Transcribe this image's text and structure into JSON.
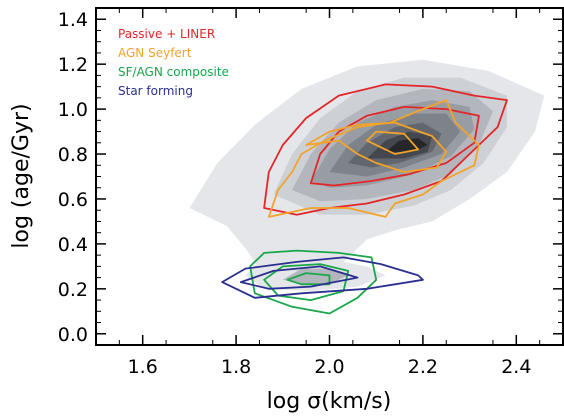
{
  "chart_data": {
    "type": "contour",
    "xlabel": "log σ(km/s)",
    "ylabel": "log (age/Gyr)",
    "xlim": [
      1.5,
      2.5
    ],
    "ylim": [
      -0.05,
      1.45
    ],
    "xticks": [
      {
        "value": 1.6,
        "label": "1.6"
      },
      {
        "value": 1.8,
        "label": "1.8"
      },
      {
        "value": 2.0,
        "label": "2.0"
      },
      {
        "value": 2.2,
        "label": "2.2"
      },
      {
        "value": 2.4,
        "label": "2.4"
      }
    ],
    "yticks": [
      {
        "value": 0.0,
        "label": "0.0"
      },
      {
        "value": 0.2,
        "label": "0.2"
      },
      {
        "value": 0.4,
        "label": "0.4"
      },
      {
        "value": 0.6,
        "label": "0.6"
      },
      {
        "value": 0.8,
        "label": "0.8"
      },
      {
        "value": 1.0,
        "label": "1.0"
      },
      {
        "value": 1.2,
        "label": "1.2"
      },
      {
        "value": 1.4,
        "label": "1.4"
      }
    ],
    "legend": {
      "placement": "top-left",
      "entries": [
        {
          "label": "Passive + LINER",
          "color": "#e2262a"
        },
        {
          "label": "AGN Seyfert",
          "color": "#f2a32a"
        },
        {
          "label": "SF/AGN composite",
          "color": "#1aa64a"
        },
        {
          "label": "Star forming",
          "color": "#2b2f8f"
        }
      ]
    },
    "filled_contours": [
      {
        "color": "#e4e6ea",
        "points": [
          [
            1.7,
            0.56
          ],
          [
            1.76,
            0.76
          ],
          [
            1.84,
            0.93
          ],
          [
            1.94,
            1.09
          ],
          [
            2.06,
            1.19
          ],
          [
            2.2,
            1.22
          ],
          [
            2.34,
            1.17
          ],
          [
            2.46,
            1.06
          ],
          [
            2.44,
            0.9
          ],
          [
            2.38,
            0.72
          ],
          [
            2.3,
            0.6
          ],
          [
            2.22,
            0.5
          ],
          [
            2.14,
            0.46
          ],
          [
            2.08,
            0.42
          ],
          [
            2.04,
            0.34
          ],
          [
            2.0,
            0.26
          ],
          [
            1.92,
            0.24
          ],
          [
            1.86,
            0.26
          ],
          [
            1.82,
            0.38
          ],
          [
            1.78,
            0.48
          ]
        ]
      },
      {
        "color": "#cdd0d5",
        "points": [
          [
            1.88,
            0.62
          ],
          [
            1.92,
            0.8
          ],
          [
            1.98,
            0.96
          ],
          [
            2.06,
            1.08
          ],
          [
            2.16,
            1.14
          ],
          [
            2.28,
            1.14
          ],
          [
            2.38,
            1.06
          ],
          [
            2.38,
            0.92
          ],
          [
            2.33,
            0.76
          ],
          [
            2.26,
            0.64
          ],
          [
            2.18,
            0.57
          ],
          [
            2.08,
            0.53
          ],
          [
            1.98,
            0.53
          ]
        ]
      },
      {
        "color": "#b3b7bd",
        "points": [
          [
            1.92,
            0.64
          ],
          [
            1.96,
            0.8
          ],
          [
            2.02,
            0.94
          ],
          [
            2.1,
            1.04
          ],
          [
            2.2,
            1.09
          ],
          [
            2.3,
            1.08
          ],
          [
            2.35,
            0.99
          ],
          [
            2.32,
            0.84
          ],
          [
            2.26,
            0.71
          ],
          [
            2.18,
            0.64
          ],
          [
            2.08,
            0.6
          ],
          [
            1.98,
            0.59
          ]
        ]
      },
      {
        "color": "#989ca3",
        "points": [
          [
            1.96,
            0.68
          ],
          [
            2.0,
            0.82
          ],
          [
            2.06,
            0.94
          ],
          [
            2.14,
            1.01
          ],
          [
            2.22,
            1.04
          ],
          [
            2.3,
            1.01
          ],
          [
            2.31,
            0.91
          ],
          [
            2.26,
            0.79
          ],
          [
            2.18,
            0.71
          ],
          [
            2.08,
            0.66
          ],
          [
            2.0,
            0.65
          ]
        ]
      },
      {
        "color": "#7e8289",
        "points": [
          [
            2.0,
            0.72
          ],
          [
            2.04,
            0.84
          ],
          [
            2.1,
            0.93
          ],
          [
            2.18,
            0.98
          ],
          [
            2.25,
            0.98
          ],
          [
            2.28,
            0.9
          ],
          [
            2.24,
            0.8
          ],
          [
            2.16,
            0.74
          ],
          [
            2.08,
            0.7
          ]
        ]
      },
      {
        "color": "#62666d",
        "points": [
          [
            2.04,
            0.76
          ],
          [
            2.08,
            0.85
          ],
          [
            2.14,
            0.92
          ],
          [
            2.2,
            0.94
          ],
          [
            2.24,
            0.89
          ],
          [
            2.22,
            0.81
          ],
          [
            2.15,
            0.76
          ],
          [
            2.09,
            0.74
          ]
        ]
      },
      {
        "color": "#44474d",
        "points": [
          [
            2.08,
            0.78
          ],
          [
            2.12,
            0.86
          ],
          [
            2.17,
            0.9
          ],
          [
            2.22,
            0.88
          ],
          [
            2.21,
            0.81
          ],
          [
            2.16,
            0.78
          ]
        ]
      },
      {
        "color": "#25272b",
        "points": [
          [
            2.12,
            0.81
          ],
          [
            2.15,
            0.86
          ],
          [
            2.19,
            0.87
          ],
          [
            2.21,
            0.84
          ],
          [
            2.18,
            0.81
          ]
        ]
      },
      {
        "color": "#e4e6ea",
        "points": [
          [
            1.82,
            0.26
          ],
          [
            1.85,
            0.32
          ],
          [
            1.92,
            0.34
          ],
          [
            2.0,
            0.33
          ],
          [
            2.08,
            0.3
          ],
          [
            2.12,
            0.26
          ],
          [
            2.06,
            0.21
          ],
          [
            1.96,
            0.19
          ],
          [
            1.86,
            0.2
          ]
        ]
      },
      {
        "color": "#b3b7bd",
        "points": [
          [
            1.9,
            0.24
          ],
          [
            1.94,
            0.29
          ],
          [
            2.0,
            0.29
          ],
          [
            2.04,
            0.26
          ],
          [
            2.0,
            0.22
          ],
          [
            1.94,
            0.22
          ]
        ]
      }
    ],
    "line_contours": [
      {
        "series": "Passive + LINER",
        "color": "#e2262a",
        "points": [
          [
            1.86,
            0.56
          ],
          [
            1.87,
            0.72
          ],
          [
            1.9,
            0.84
          ],
          [
            1.95,
            0.96
          ],
          [
            2.02,
            1.06
          ],
          [
            2.12,
            1.11
          ],
          [
            2.22,
            1.1
          ],
          [
            2.31,
            1.06
          ],
          [
            2.38,
            1.04
          ],
          [
            2.36,
            0.92
          ],
          [
            2.3,
            0.8
          ],
          [
            2.24,
            0.68
          ],
          [
            2.16,
            0.62
          ],
          [
            2.08,
            0.58
          ],
          [
            2.0,
            0.56
          ],
          [
            1.93,
            0.53
          ]
        ]
      },
      {
        "series": "Passive + LINER",
        "color": "#e2262a",
        "points": [
          [
            1.96,
            0.67
          ],
          [
            1.98,
            0.8
          ],
          [
            2.02,
            0.9
          ],
          [
            2.08,
            0.97
          ],
          [
            2.16,
            1.01
          ],
          [
            2.25,
            1.0
          ],
          [
            2.32,
            0.97
          ],
          [
            2.31,
            0.85
          ],
          [
            2.25,
            0.76
          ],
          [
            2.17,
            0.71
          ],
          [
            2.09,
            0.68
          ],
          [
            2.01,
            0.66
          ]
        ]
      },
      {
        "series": "AGN Seyfert",
        "color": "#f2a32a",
        "points": [
          [
            1.87,
            0.52
          ],
          [
            1.89,
            0.64
          ],
          [
            1.92,
            0.72
          ],
          [
            1.94,
            0.8
          ],
          [
            1.99,
            0.86
          ],
          [
            2.06,
            0.92
          ],
          [
            2.13,
            0.94
          ],
          [
            2.2,
            1.0
          ],
          [
            2.25,
            1.04
          ],
          [
            2.27,
            0.94
          ],
          [
            2.32,
            0.84
          ],
          [
            2.31,
            0.75
          ],
          [
            2.24,
            0.68
          ],
          [
            2.2,
            0.62
          ],
          [
            2.14,
            0.58
          ],
          [
            2.12,
            0.52
          ],
          [
            2.04,
            0.56
          ],
          [
            1.96,
            0.56
          ]
        ]
      },
      {
        "series": "AGN Seyfert",
        "color": "#f2a32a",
        "points": [
          [
            1.95,
            0.84
          ],
          [
            2.02,
            0.86
          ],
          [
            2.06,
            0.8
          ],
          [
            2.1,
            0.76
          ],
          [
            2.16,
            0.72
          ],
          [
            2.23,
            0.74
          ],
          [
            2.25,
            0.81
          ],
          [
            2.22,
            0.88
          ],
          [
            2.14,
            0.94
          ],
          [
            2.06,
            0.93
          ],
          [
            2.0,
            0.9
          ]
        ]
      },
      {
        "series": "AGN Seyfert",
        "color": "#f2a32a",
        "points": [
          [
            2.08,
            0.86
          ],
          [
            2.14,
            0.8
          ],
          [
            2.19,
            0.82
          ],
          [
            2.16,
            0.89
          ],
          [
            2.1,
            0.9
          ]
        ]
      },
      {
        "series": "SF/AGN composite",
        "color": "#1aa64a",
        "points": [
          [
            1.83,
            0.3
          ],
          [
            1.86,
            0.36
          ],
          [
            1.93,
            0.37
          ],
          [
            2.02,
            0.36
          ],
          [
            2.09,
            0.34
          ],
          [
            2.1,
            0.24
          ],
          [
            2.06,
            0.16
          ],
          [
            2.0,
            0.09
          ],
          [
            1.92,
            0.12
          ],
          [
            1.84,
            0.18
          ]
        ]
      },
      {
        "series": "SF/AGN composite",
        "color": "#1aa64a",
        "points": [
          [
            1.86,
            0.24
          ],
          [
            1.9,
            0.3
          ],
          [
            1.98,
            0.31
          ],
          [
            2.04,
            0.28
          ],
          [
            2.03,
            0.19
          ],
          [
            1.96,
            0.15
          ],
          [
            1.89,
            0.17
          ]
        ]
      },
      {
        "series": "SF/AGN composite",
        "color": "#1aa64a",
        "points": [
          [
            1.91,
            0.24
          ],
          [
            1.95,
            0.27
          ],
          [
            2.0,
            0.26
          ],
          [
            2.0,
            0.22
          ],
          [
            1.94,
            0.22
          ]
        ]
      },
      {
        "series": "Star forming",
        "color": "#2b2f8f",
        "points": [
          [
            1.77,
            0.23
          ],
          [
            1.82,
            0.29
          ],
          [
            1.93,
            0.32
          ],
          [
            2.03,
            0.34
          ],
          [
            2.11,
            0.31
          ],
          [
            2.19,
            0.26
          ],
          [
            2.2,
            0.24
          ],
          [
            2.08,
            0.2
          ],
          [
            1.94,
            0.18
          ],
          [
            1.84,
            0.16
          ]
        ]
      },
      {
        "series": "Star forming",
        "color": "#2b2f8f",
        "points": [
          [
            1.81,
            0.23
          ],
          [
            1.88,
            0.28
          ],
          [
            1.98,
            0.3
          ],
          [
            2.06,
            0.25
          ],
          [
            1.96,
            0.21
          ],
          [
            1.87,
            0.2
          ]
        ]
      }
    ]
  }
}
